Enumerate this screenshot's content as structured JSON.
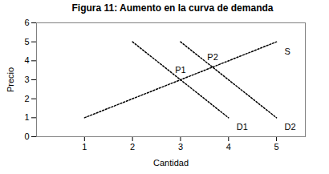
{
  "chart_data": {
    "type": "line",
    "title": "Figura 11: Aumento en la curva de demanda",
    "x_label": "Cantidad",
    "y_label": "Precio",
    "xlim": [
      0,
      5.6
    ],
    "xticks": [
      1,
      2,
      3,
      4,
      5
    ],
    "ylim": [
      0,
      6
    ],
    "yticks": [
      0,
      1,
      2,
      3,
      4,
      5,
      6
    ],
    "grid": false,
    "series": [
      {
        "name": "S",
        "color": "#000000",
        "line_style": "dotted",
        "x": [
          1,
          5
        ],
        "values": [
          1,
          5
        ]
      },
      {
        "name": "D1",
        "color": "#000000",
        "line_style": "dotted",
        "x": [
          2,
          4
        ],
        "values": [
          5,
          1
        ]
      },
      {
        "name": "D2",
        "color": "#000000",
        "line_style": "dotted",
        "x": [
          3,
          5
        ],
        "values": [
          5,
          1
        ]
      }
    ],
    "annotations": [
      {
        "text": "P1",
        "x": 3,
        "y": 3
      },
      {
        "text": "P2",
        "x": 3.67,
        "y": 3.67
      }
    ]
  }
}
